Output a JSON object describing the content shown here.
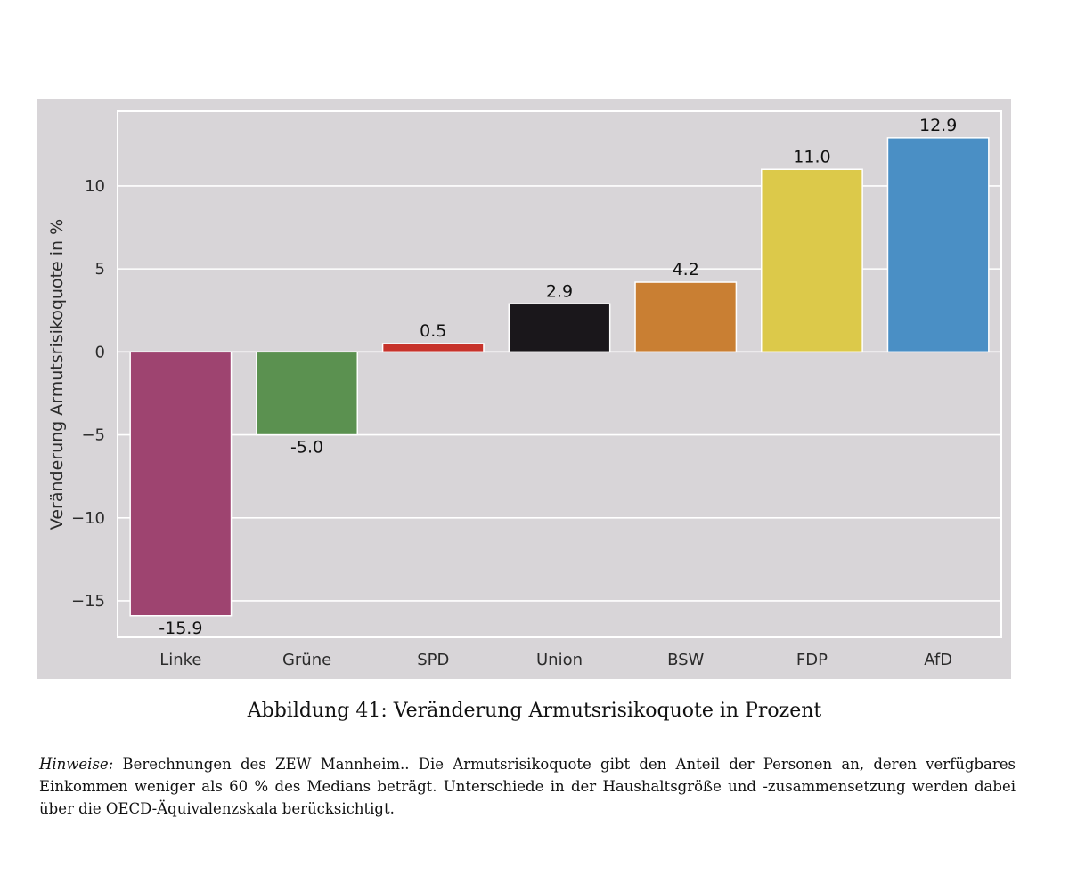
{
  "chart_data": {
    "type": "bar",
    "title": "",
    "xlabel": "",
    "ylabel": "Veränderung Armutsrisikoquote in %",
    "categories": [
      "Linke",
      "Grüne",
      "SPD",
      "Union",
      "BSW",
      "FDP",
      "AfD"
    ],
    "values": [
      -15.9,
      -5.0,
      0.5,
      2.9,
      4.2,
      11.0,
      12.9
    ],
    "value_labels": [
      "-15.9",
      "-5.0",
      "0.5",
      "2.9",
      "4.2",
      "11.0",
      "12.9"
    ],
    "colors": [
      "#9e4470",
      "#5b9150",
      "#c7332b",
      "#1a171b",
      "#c97f33",
      "#dcc94a",
      "#4a8fc5"
    ],
    "yticks": [
      10,
      5,
      0,
      -5,
      -10,
      -15
    ],
    "ytick_labels": [
      "10",
      "5",
      "0",
      "−5",
      "−10",
      "−15"
    ],
    "ylim": [
      -17.2,
      14.5
    ],
    "grid": true,
    "background": "#d8d5d8"
  },
  "caption": "Abbildung 41: Veränderung Armutsrisikoquote in Prozent",
  "note": {
    "label": "Hinweise:",
    "text": " Berechnungen des ZEW Mannheim.. Die Armutsrisikoquote gibt den Anteil der Personen an, deren verfügbares Einkommen weniger als 60 % des Medians beträgt. Unterschiede in der Haushaltsgröße und -zusammensetzung werden dabei über die OECD-Äquivalenzskala berücksichtigt."
  }
}
